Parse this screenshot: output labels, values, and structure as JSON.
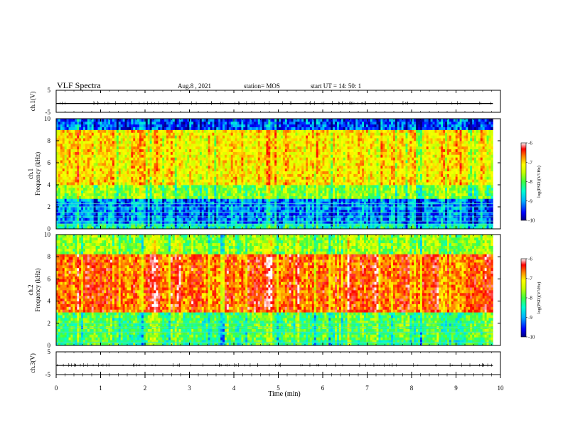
{
  "header": {
    "title": "VLF Spectra",
    "date": "Aug.8  , 2021",
    "station": "station= MOS",
    "start_ut": "start  UT  =    14: 50: 1"
  },
  "chart_data": [
    {
      "type": "line",
      "panel": "ch1-waveform",
      "ylabel": "ch.1(V)",
      "ylim": [
        -5,
        5
      ],
      "y_ticks": [
        "5",
        "-5"
      ],
      "series": [
        {
          "values": [
            -1,
            -1
          ]
        }
      ],
      "x": [
        0,
        9.83
      ]
    },
    {
      "type": "heatmap",
      "panel": "ch1-spectrogram",
      "ylabel": "ch.1\nFrequency (kHz)",
      "ylim": [
        0,
        10
      ],
      "y_ticks": [
        "0",
        "2",
        "4",
        "6",
        "8",
        "10"
      ],
      "xlim": [
        0,
        10
      ],
      "data_extent_min": 9.83,
      "colorbar": {
        "label": "log(PSD)(V²/Hz)",
        "range": [
          -10,
          -6
        ],
        "ticks": [
          "-6",
          "-7",
          "-8",
          "-9",
          "-10"
        ]
      },
      "band_profile": [
        {
          "freq_khz": [
            0,
            0.5
          ],
          "log_psd": -8.6
        },
        {
          "freq_khz": [
            0.5,
            2.8
          ],
          "log_psd": -9.2
        },
        {
          "freq_khz": [
            2.8,
            4.0
          ],
          "log_psd": -8.0
        },
        {
          "freq_khz": [
            4.0,
            9.0
          ],
          "log_psd": -7.3
        },
        {
          "freq_khz": [
            9.0,
            10.0
          ],
          "log_psd": -9.4
        }
      ],
      "line_emissions_khz": [
        0.4,
        0.7,
        1.1,
        1.5,
        2.0,
        2.3
      ]
    },
    {
      "type": "heatmap",
      "panel": "ch2-spectrogram",
      "ylabel": "ch.2\nFrequency (kHz)",
      "ylim": [
        0,
        10
      ],
      "y_ticks": [
        "0",
        "2",
        "4",
        "6",
        "8",
        "10"
      ],
      "xlim": [
        0,
        10
      ],
      "data_extent_min": 9.83,
      "colorbar": {
        "label": "log(PSD)(V²/Hz)",
        "range": [
          -10,
          -6
        ],
        "ticks": [
          "-6",
          "-7",
          "-8",
          "-9",
          "-10"
        ]
      },
      "band_profile": [
        {
          "freq_khz": [
            0,
            0.5
          ],
          "log_psd": -8.3
        },
        {
          "freq_khz": [
            0.5,
            3.0
          ],
          "log_psd": -8.2
        },
        {
          "freq_khz": [
            3.0,
            8.3
          ],
          "log_psd": -6.7
        },
        {
          "freq_khz": [
            8.3,
            10.0
          ],
          "log_psd": -7.9
        }
      ],
      "line_emissions_khz": [
        0.3,
        1.2,
        1.6,
        2.0
      ]
    },
    {
      "type": "line",
      "panel": "ch3-waveform",
      "ylabel": "ch.3(V)",
      "ylim": [
        -5,
        5
      ],
      "y_ticks": [
        "5",
        "-5"
      ],
      "series": [
        {
          "values": [
            -1,
            -1
          ]
        }
      ],
      "x": [
        0,
        9.83
      ]
    }
  ],
  "time_axis": {
    "label": "Time  (min)",
    "range": [
      0,
      10
    ],
    "ticks": [
      "0",
      "1",
      "2",
      "3",
      "4",
      "5",
      "6",
      "7",
      "8",
      "9",
      "10"
    ]
  },
  "colors": {
    "colormap": [
      "#00007f",
      "#0000ff",
      "#00b0ff",
      "#00ffd0",
      "#40ff40",
      "#c8ff00",
      "#ffff00",
      "#ff8c00",
      "#ff0000",
      "#ffffff"
    ],
    "axis": "#000000",
    "background": "#ffffff"
  }
}
